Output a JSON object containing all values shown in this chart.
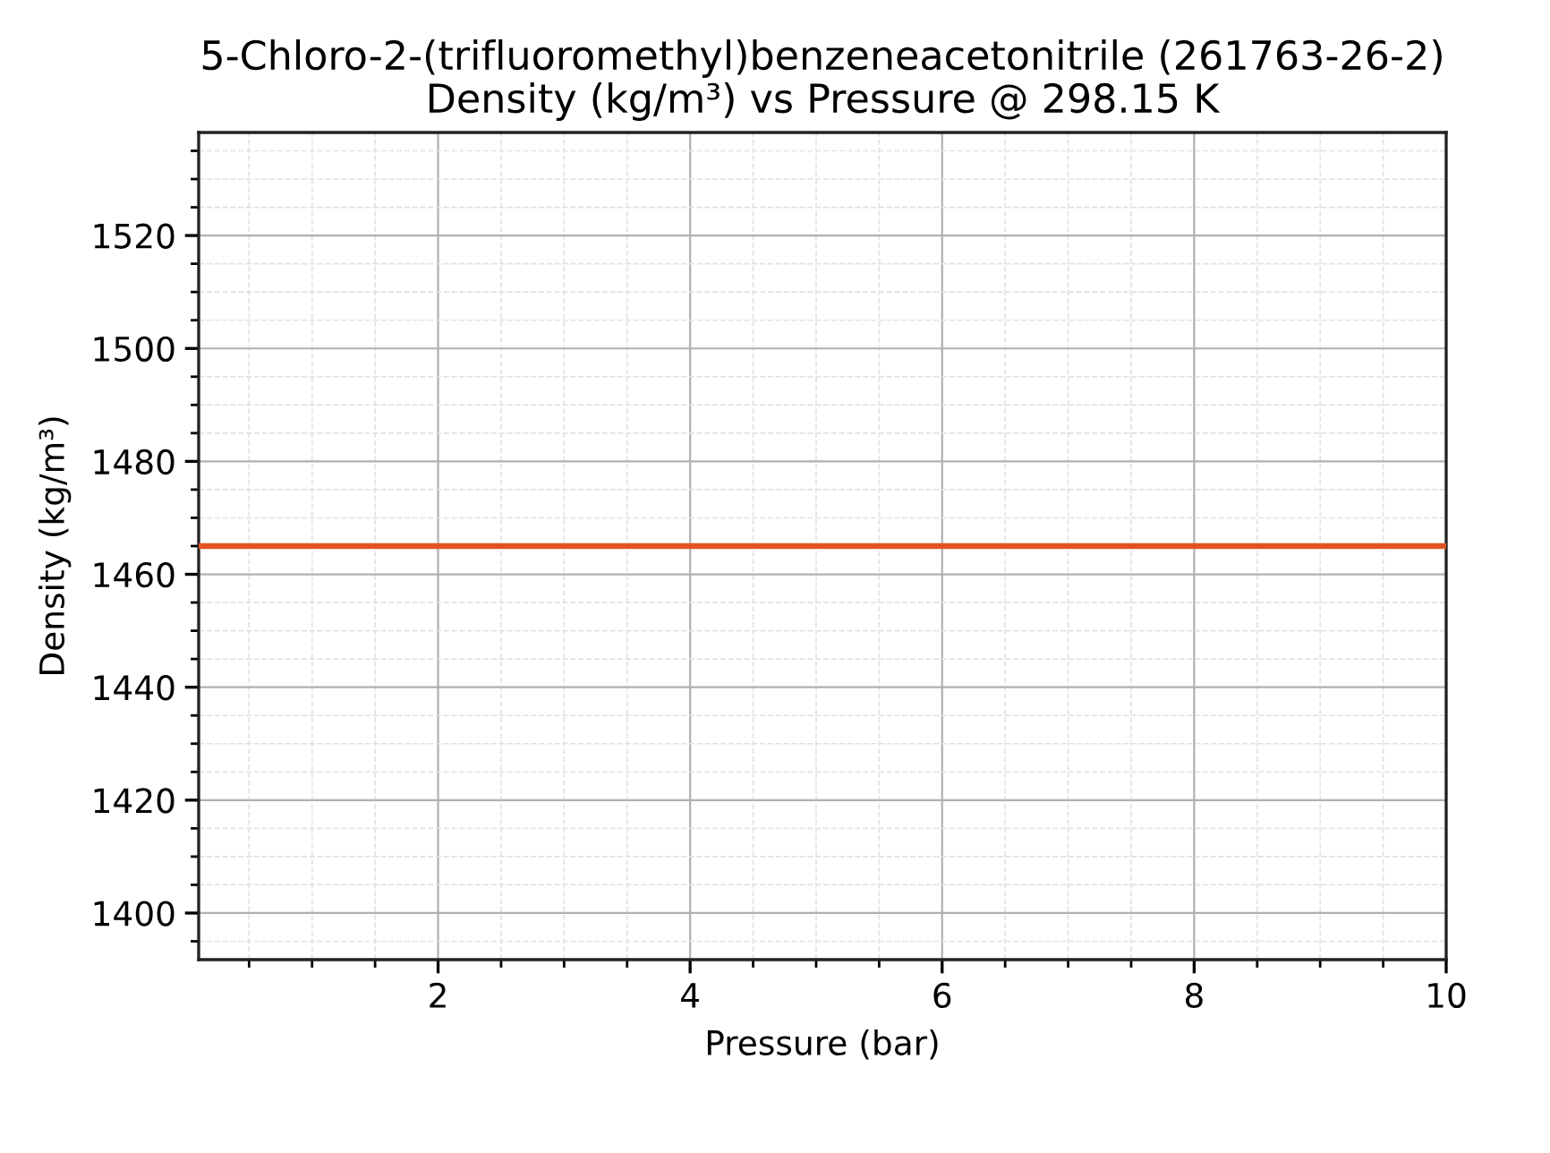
{
  "chart_data": {
    "type": "line",
    "title": "5-Chloro-2-(trifluoromethyl)benzeneacetonitrile (261763-26-2)",
    "subtitle": "Density (kg/m³) vs Pressure @ 298.15 K",
    "xlabel": "Pressure (bar)",
    "ylabel": "Density (kg/m³)",
    "x": [
      0.1,
      10
    ],
    "series": [
      {
        "color": "#e05424",
        "values": [
          1465,
          1465
        ]
      }
    ],
    "xlim": [
      0.1,
      10
    ],
    "xticks": [
      2,
      4,
      6,
      8,
      10
    ],
    "ylim": [
      1391.75,
      1538.25
    ],
    "yticks": [
      1400,
      1420,
      1440,
      1460,
      1480,
      1500,
      1520
    ],
    "grid": true,
    "marker": "none",
    "line_style": "solid"
  }
}
